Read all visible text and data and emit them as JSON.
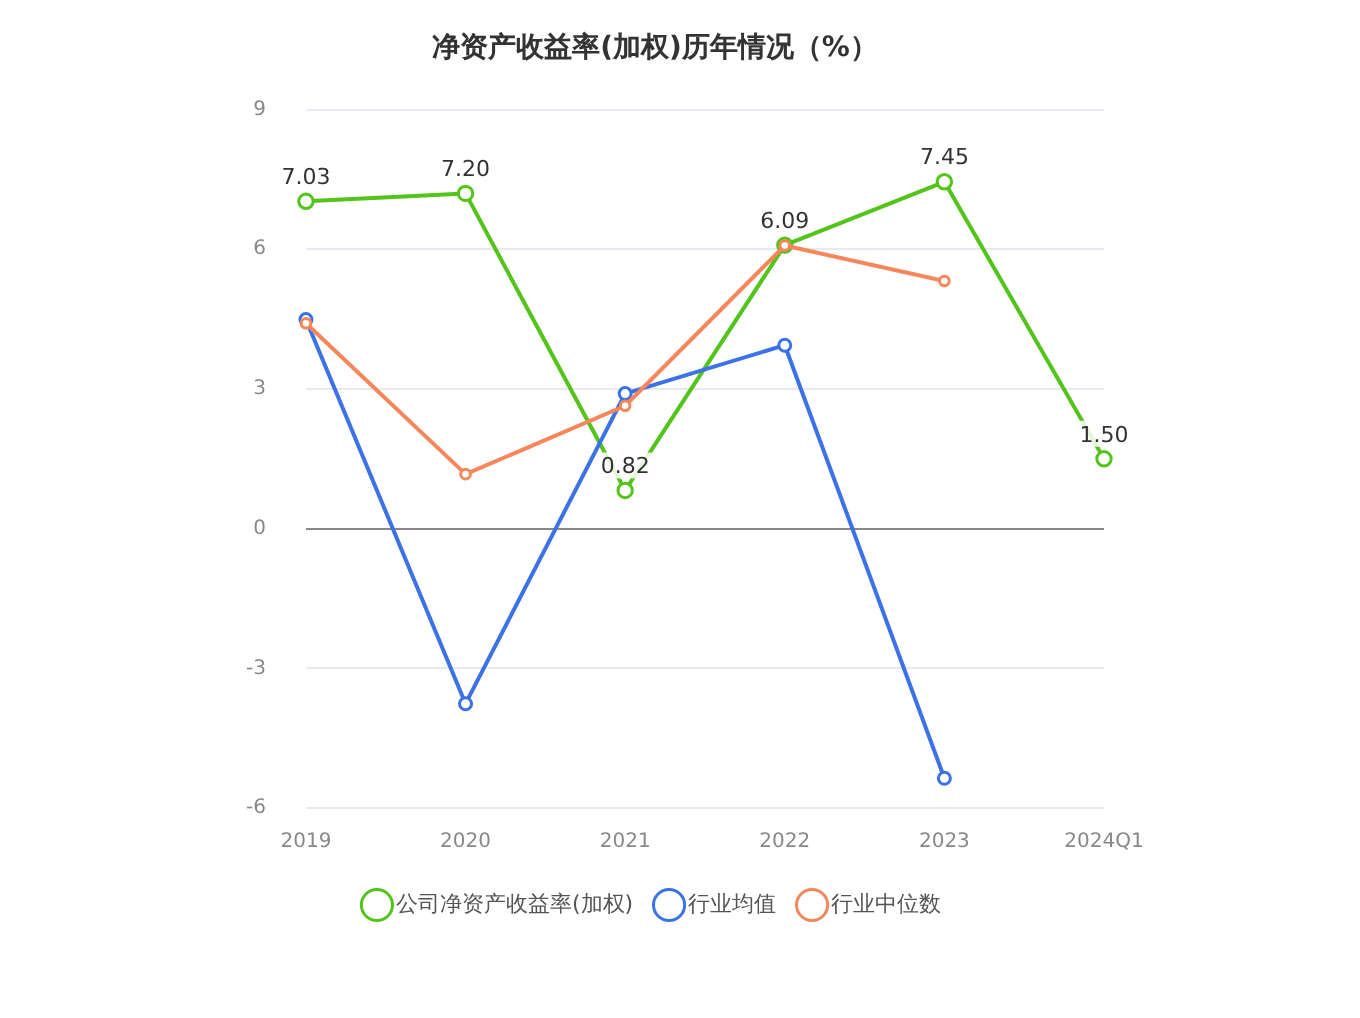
{
  "chart_data": {
    "type": "line",
    "title": "净资产收益率(加权)历年情况（%）",
    "categories": [
      "2019",
      "2020",
      "2021",
      "2022",
      "2023",
      "2024Q1"
    ],
    "series": [
      {
        "name": "公司净资产收益率(加权)",
        "color": "#52c41a",
        "values": [
          7.03,
          7.2,
          0.82,
          6.09,
          7.45,
          1.5
        ],
        "value_labels": [
          "7.03",
          "7.20",
          "0.82",
          "6.09",
          "7.45",
          "1.50"
        ]
      },
      {
        "name": "行业均值",
        "color": "#3b72e6",
        "values": [
          4.49,
          -3.76,
          2.9,
          3.94,
          -5.36,
          null
        ]
      },
      {
        "name": "行业中位数",
        "color": "#f5875a",
        "values": [
          4.41,
          1.17,
          2.64,
          6.08,
          5.32,
          null
        ]
      }
    ],
    "ylim": [
      -6,
      9
    ],
    "yticks": [
      -6,
      -3,
      0,
      3,
      6,
      9
    ],
    "grid": "y",
    "legend": "bottom",
    "marker": "circle",
    "line_style": "solid"
  }
}
